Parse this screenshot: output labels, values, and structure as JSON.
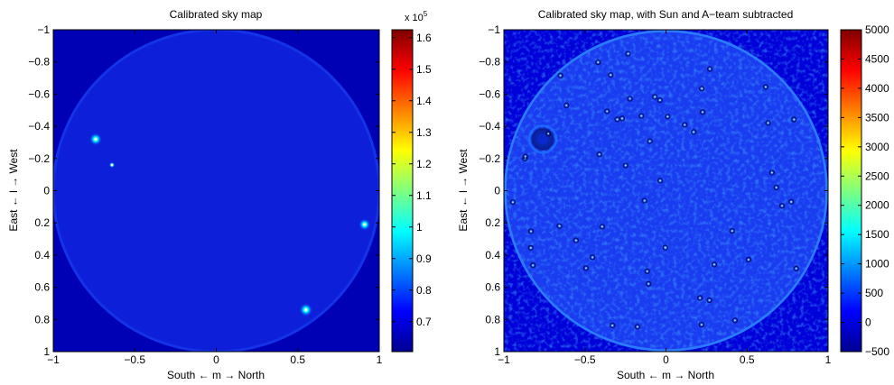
{
  "chart_data": [
    {
      "type": "heatmap",
      "title": "Calibrated sky map",
      "xlabel": "South ← m → North",
      "ylabel": "East ← l → West",
      "xlim": [
        -1,
        1
      ],
      "ylim": [
        -1,
        1
      ],
      "y_reversed": true,
      "x_ticks": [
        "−1",
        "−0.5",
        "0",
        "0.5",
        "1"
      ],
      "y_ticks": [
        "−1",
        "−0.8",
        "−0.6",
        "−0.4",
        "−0.2",
        "0",
        "0.2",
        "0.4",
        "0.6",
        "0.8",
        "1"
      ],
      "colorbar": {
        "range": [
          0.605,
          1.625
        ],
        "ticks": [
          "0.7",
          "0.8",
          "0.9",
          "1",
          "1.1",
          "1.2",
          "1.3",
          "1.4",
          "1.5",
          "1.6"
        ],
        "multiplier_base": "x 10",
        "multiplier_exp": "5"
      },
      "colormap": "jet",
      "sources": [
        {
          "m": -0.74,
          "l": -0.32,
          "intensity": 1.3
        },
        {
          "m": -0.64,
          "l": -0.16,
          "intensity": 0.85
        },
        {
          "m": 0.91,
          "l": 0.21,
          "intensity": 1.25
        },
        {
          "m": 0.55,
          "l": 0.74,
          "intensity": 1.35
        }
      ]
    },
    {
      "type": "heatmap",
      "title": "Calibrated sky map, with Sun and A−team subtracted",
      "xlabel": "South ← m → North",
      "ylabel": "East ← l → West",
      "xlim": [
        -1,
        1
      ],
      "ylim": [
        -1,
        1
      ],
      "y_reversed": true,
      "x_ticks": [
        "−1",
        "−0.5",
        "0",
        "0.5",
        "1"
      ],
      "y_ticks": [
        "−1",
        "−0.8",
        "−0.6",
        "−0.4",
        "−0.2",
        "0",
        "0.2",
        "0.4",
        "0.6",
        "0.8",
        "1"
      ],
      "colorbar": {
        "range": [
          -500,
          5000
        ],
        "ticks": [
          "−500",
          "0",
          "500",
          "1000",
          "1500",
          "2000",
          "2500",
          "3000",
          "3500",
          "4000",
          "4500",
          "5000"
        ]
      },
      "colormap": "jet",
      "subtracted_source": {
        "m": -0.76,
        "l": -0.32
      }
    }
  ]
}
